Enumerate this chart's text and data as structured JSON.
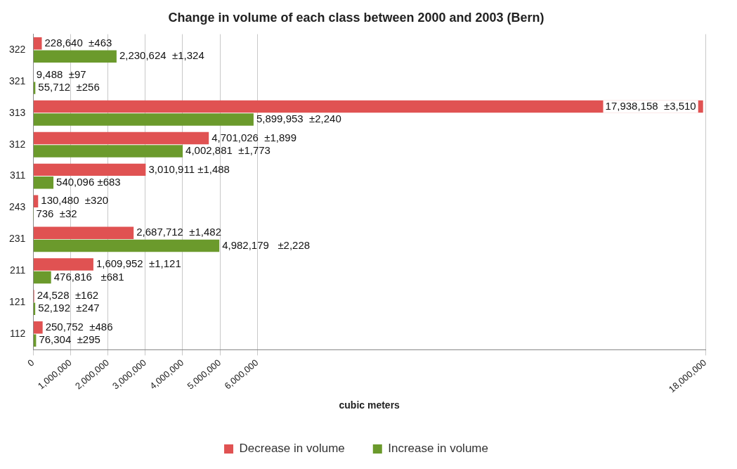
{
  "chart_data": {
    "type": "bar",
    "orientation": "horizontal",
    "title": "Change in volume of each class between 2000 and 2003 (Bern)",
    "xlabel": "cubic meters",
    "categories": [
      "322",
      "321",
      "313",
      "312",
      "311",
      "243",
      "231",
      "211",
      "121",
      "112"
    ],
    "series": [
      {
        "name": "Decrease in volume",
        "color": "#e05252",
        "values": [
          228640,
          9488,
          17938158,
          4701026,
          3010911,
          130480,
          2687712,
          1609952,
          24528,
          250752
        ],
        "value_labels": [
          "228,640  ±463",
          "9,488  ±97",
          "17,938,158  ±3,510",
          "4,701,026  ±1,899",
          "3,010,911 ±1,488",
          "130,480  ±320",
          "2,687,712  ±1,482",
          "1,609,952  ±1,121",
          "24,528  ±162",
          "250,752  ±486"
        ]
      },
      {
        "name": "Increase in volume",
        "color": "#6b9a2c",
        "values": [
          2230624,
          55712,
          5899953,
          4002881,
          540096,
          736,
          4982179,
          476816,
          52192,
          76304
        ],
        "value_labels": [
          "2,230,624  ±1,324",
          "55,712  ±256",
          "5,899,953  ±2,240",
          "4,002,881  ±1,773",
          "540,096 ±683",
          "736  ±32",
          "4,982,179   ±2,228",
          "476,816   ±681",
          "52,192  ±247",
          "76,304  ±295"
        ]
      }
    ],
    "xlim": [
      0,
      18000000
    ],
    "xticks": [
      {
        "value": 0,
        "label": "0"
      },
      {
        "value": 1000000,
        "label": "1,000,000"
      },
      {
        "value": 2000000,
        "label": "2,000,000"
      },
      {
        "value": 3000000,
        "label": "3,000,000"
      },
      {
        "value": 4000000,
        "label": "4,000,000"
      },
      {
        "value": 5000000,
        "label": "5,000,000"
      },
      {
        "value": 6000000,
        "label": "6,000,000"
      },
      {
        "value": 18000000,
        "label": "18,000,000"
      }
    ],
    "grid": "x",
    "legend": "bottom"
  }
}
